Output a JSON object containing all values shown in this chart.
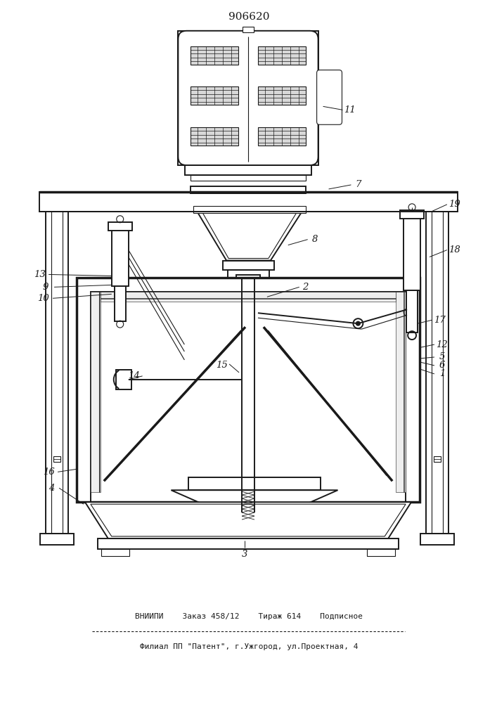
{
  "title": "906620",
  "bg_color": "#ffffff",
  "line_color": "#1a1a1a",
  "footer_line1": "ВНИИПИ    Заказ 458/12    Тираж 614    Подписное",
  "footer_line2": "Филиал ПП \"Патент\", г.Ужгород, ул.Проектная, 4"
}
